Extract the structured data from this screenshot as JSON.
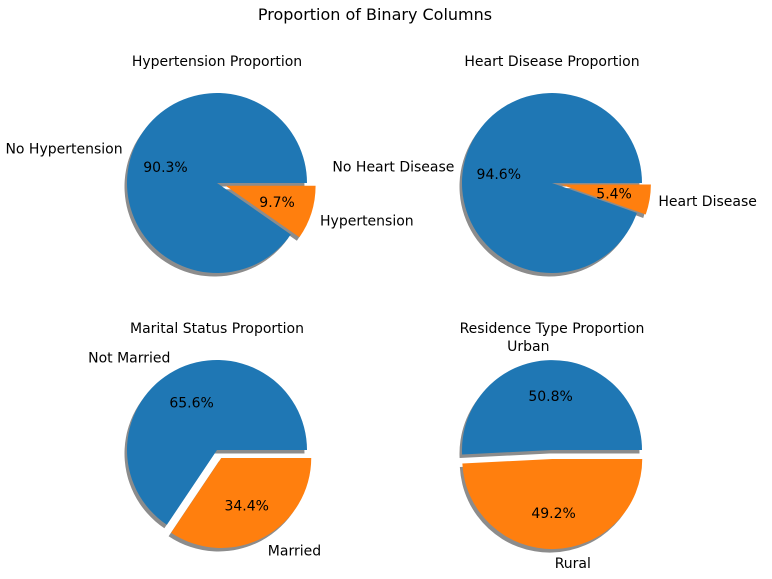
{
  "figure": {
    "title": "Proportion of Binary Columns"
  },
  "colors": {
    "first": "#1f77b4",
    "second": "#ff7f0e",
    "shadow": "#808080"
  },
  "chart_data": [
    {
      "type": "pie",
      "title": "Hypertension Proportion",
      "labels": [
        "No Hypertension",
        "Hypertension"
      ],
      "values": [
        90.3,
        9.7
      ],
      "percent_labels": [
        "90.3%",
        "9.7%"
      ],
      "colors": [
        "#1f77b4",
        "#ff7f0e"
      ],
      "explode": [
        0,
        0.1
      ],
      "shadow": true
    },
    {
      "type": "pie",
      "title": "Heart Disease Proportion",
      "labels": [
        "No Heart Disease",
        "Heart Disease"
      ],
      "values": [
        94.6,
        5.4
      ],
      "percent_labels": [
        "94.6%",
        "5.4%"
      ],
      "colors": [
        "#1f77b4",
        "#ff7f0e"
      ],
      "explode": [
        0,
        0.1
      ],
      "shadow": true
    },
    {
      "type": "pie",
      "title": "Marital Status Proportion",
      "labels": [
        "Not Married",
        "Married"
      ],
      "values": [
        65.6,
        34.4
      ],
      "percent_labels": [
        "65.6%",
        "34.4%"
      ],
      "colors": [
        "#1f77b4",
        "#ff7f0e"
      ],
      "explode": [
        0,
        0.1
      ],
      "shadow": true
    },
    {
      "type": "pie",
      "title": "Residence Type Proportion",
      "labels": [
        "Urban",
        "Rural"
      ],
      "values": [
        50.8,
        49.2
      ],
      "percent_labels": [
        "50.8%",
        "49.2%"
      ],
      "colors": [
        "#1f77b4",
        "#ff7f0e"
      ],
      "explode": [
        0,
        0.1
      ],
      "shadow": true
    }
  ]
}
